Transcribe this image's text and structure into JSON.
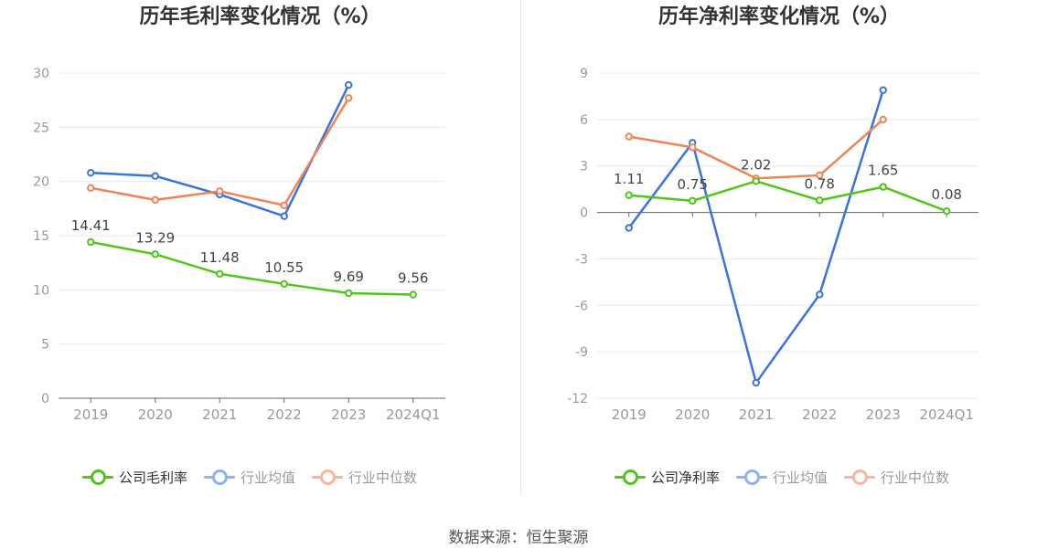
{
  "footer": {
    "source": "数据来源：恒生聚源"
  },
  "colors": {
    "company": "#52c41a",
    "avg": "#3b73db",
    "median": "#ee8558"
  },
  "chart_data": [
    {
      "type": "line",
      "title": "历年毛利率变化情况（%）",
      "categories": [
        "2019",
        "2020",
        "2021",
        "2022",
        "2023",
        "2024Q1"
      ],
      "ylim": [
        0,
        30
      ],
      "yticks": [
        0,
        5,
        10,
        15,
        20,
        25,
        30
      ],
      "grid": true,
      "legend_position": "bottom",
      "series": [
        {
          "name": "公司毛利率",
          "values": [
            14.41,
            13.29,
            11.48,
            10.55,
            9.69,
            9.56
          ],
          "labels": [
            "14.41",
            "13.29",
            "11.48",
            "10.55",
            "9.69",
            "9.56"
          ]
        },
        {
          "name": "行业均值",
          "values": [
            20.8,
            20.5,
            18.8,
            16.8,
            28.9,
            null
          ]
        },
        {
          "name": "行业中位数",
          "values": [
            19.4,
            18.3,
            19.1,
            17.8,
            27.7,
            null
          ]
        }
      ]
    },
    {
      "type": "line",
      "title": "历年净利率变化情况（%）",
      "categories": [
        "2019",
        "2020",
        "2021",
        "2022",
        "2023",
        "2024Q1"
      ],
      "ylim": [
        -12,
        9
      ],
      "yticks": [
        -12,
        -9,
        -6,
        -3,
        0,
        3,
        6,
        9
      ],
      "grid": true,
      "legend_position": "bottom",
      "series": [
        {
          "name": "公司净利率",
          "values": [
            1.11,
            0.75,
            2.02,
            0.78,
            1.65,
            0.08
          ],
          "labels": [
            "1.11",
            "0.75",
            "2.02",
            "0.78",
            "1.65",
            "0.08"
          ]
        },
        {
          "name": "行业均值",
          "values": [
            -1.0,
            4.5,
            -11.0,
            -5.3,
            7.9,
            null
          ]
        },
        {
          "name": "行业中位数",
          "values": [
            4.9,
            4.2,
            2.2,
            2.4,
            6.0,
            null
          ]
        }
      ]
    }
  ]
}
